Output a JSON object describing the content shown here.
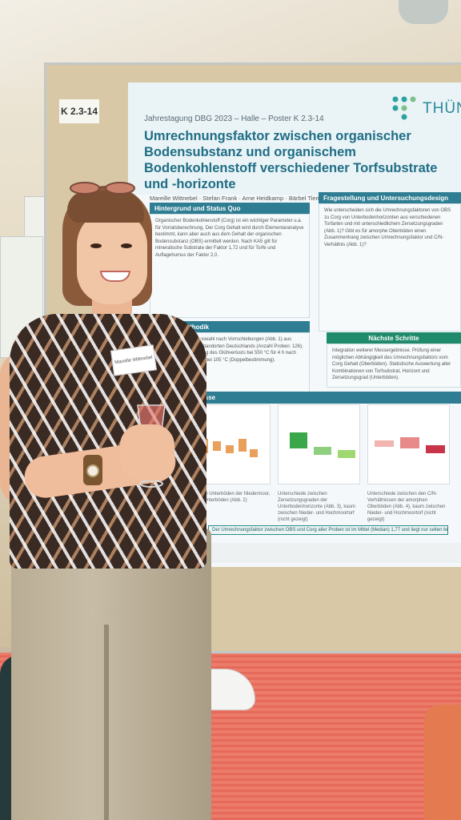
{
  "board_tag": "K 2.3-14",
  "poster": {
    "conference": "Jahrestagung DBG 2023 – Halle – Poster K 2.3-14",
    "logo_text": "THÜN",
    "title": "Umrechnungsfaktor zwischen organischer Bodensubstanz und organischem Bodenkohlenstoff verschiedener Torfsubstrate und -horizonte",
    "authors": "Mareille Wittnebel · Stefan Frank · Arne Heidkamp · Bärbel Tiemeyer",
    "sections": {
      "background_heading": "Hintergrund und Status Quo",
      "background_text": "Organischer Bodenkohlenstoff (Corg) ist ein wichtiger Parameter u.a. für Vorratsberechnung. Der Corg Gehalt wird durch Elementaranalyse bestimmt, kann aber auch aus dem Gehalt der organischen Bodensubstanz (OBS) ermittelt werden. Nach KA5 gilt für mineralische Substrate der Faktor 1,72 und für Torfe und Auflagehumus der Faktor 2,0.",
      "question_heading": "Fragestellung und Untersuchungsdesign",
      "question_text": "Wie unterscheiden sich die Umrechnungsfaktoren von OBS zu Corg von Unterbodenhorizonten aus verschiedenen Torfarten und mit unterschiedlichem Zersetzungsgraden (Abb. 1)? Gibt es für amorphe Oberböden einen Zusammenhang zwischen Umrechnungsfaktor und C/N-Verhältnis (Abb. 1)?",
      "method_heading": "Methodik",
      "method_text": "Probenauswahl nach Vorrschiebungen (Abb. 1) aus diversen Standorten Deutschlands (Anzahl Proben: 126). Bestimmung des Glühverlusts bei 550 °C für 4 h nach Trocknung bei 105 °C (Doppelbestimmung).",
      "next_heading": "Nächste Schritte",
      "next_text": "Integration weiterer Messergebnisse. Prüfung einer möglichen Abhängigkeit des Umrechnungsfaktors vom Corg Gehalt (Oberböden). Statistische Auswertung aller Kombinationen von Torfsubstrat, Horizont und Zersetzungsgrad (Unterböden).",
      "results_heading": "Ergebnisse",
      "desc_1": "zwischen Unterböden der Niedermoor, jedoch Unterböden (Abb. 2)",
      "desc_2": "Unterschiede zwischen Zersetzungsgraden der Unterbodenhorizonte (Abb. 3), kaum zwischen Nieder- und Hochmoortorf (nicht gezeigt)",
      "desc_3": "Unterschiede zwischen den C/N-Verhältnissen der amorphen Oberböden (Abb. 4), kaum zwischen Nieder- und Hochmoortorf (nicht gezeigt)",
      "conclusion": "Der Umrechnungsfaktor zwischen OBS und Corg aller Proben ist im Mittel (Median) 1,77 und liegt nur selten bei 2,0."
    }
  },
  "nametag": "Mareille Wittnebel",
  "colors": {
    "poster_teal": "#1f6e86",
    "section_head": "#2e7d92",
    "next_steps_head": "#1f8b6a",
    "shirt": "#3a2a24",
    "pants": "#b9ad95",
    "carpet": "#e56a5a"
  }
}
